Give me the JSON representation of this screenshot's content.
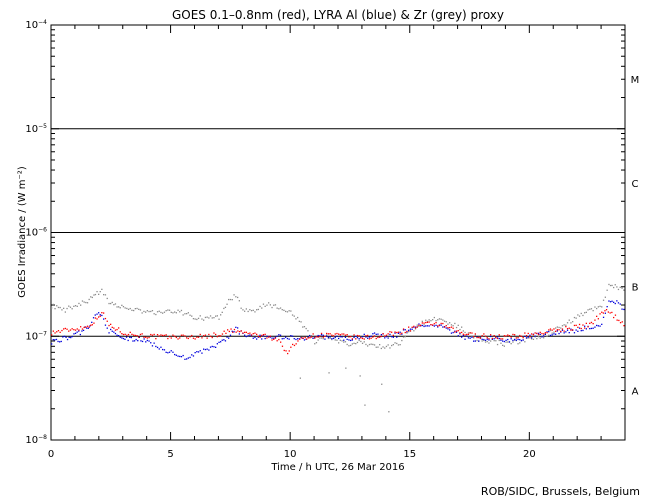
{
  "chart_data": {
    "type": "scatter",
    "title": "GOES 0.1–0.8nm (red), LYRA Al (blue) & Zr (grey) proxy",
    "xlabel": "Time / h UTC, 26 Mar 2016",
    "ylabel": "GOES Irradiance / (W m⁻²)",
    "xlim": [
      0,
      24
    ],
    "ylim": [
      1e-08,
      0.0001
    ],
    "yscale": "log",
    "x_ticks": [
      {
        "value": 0,
        "label": "0"
      },
      {
        "value": 5,
        "label": "5"
      },
      {
        "value": 10,
        "label": "10"
      },
      {
        "value": 15,
        "label": "15"
      },
      {
        "value": 20,
        "label": "20"
      }
    ],
    "y_ticks": [
      {
        "value": 1e-08,
        "base": "10",
        "exp": "−8"
      },
      {
        "value": 1e-07,
        "base": "10",
        "exp": "−7"
      },
      {
        "value": 1e-06,
        "base": "10",
        "exp": "−6"
      },
      {
        "value": 1e-05,
        "base": "10",
        "exp": "−5"
      },
      {
        "value": 0.0001,
        "base": "10",
        "exp": "−4"
      }
    ],
    "threshold_lines": [
      1e-07,
      1e-06,
      1e-05
    ],
    "flare_classes": [
      {
        "label": "A",
        "value": 3e-08
      },
      {
        "label": "B",
        "value": 3e-07
      },
      {
        "label": "C",
        "value": 3e-06
      },
      {
        "label": "M",
        "value": 3e-05
      }
    ],
    "series": [
      {
        "color": "#ff0000",
        "x": [
          0,
          0.5,
          1,
          1.5,
          1.9,
          2.1,
          2.4,
          3,
          3.5,
          4,
          4.5,
          5,
          5.5,
          6,
          6.5,
          7,
          7.5,
          8,
          8.5,
          9,
          9.5,
          9.8,
          10,
          10.3,
          10.6,
          11,
          11.5,
          12,
          12.5,
          13,
          13.5,
          14,
          14.5,
          15,
          15.5,
          16,
          16.5,
          17,
          17.5,
          18,
          18.5,
          19,
          19.5,
          20,
          20.5,
          21,
          21.5,
          22,
          22.5,
          23,
          23.2,
          23.5,
          24
        ],
        "y": [
          1.1e-07,
          1.15e-07,
          1.2e-07,
          1.25e-07,
          1.5e-07,
          1.75e-07,
          1.3e-07,
          1.1e-07,
          1.05e-07,
          1.02e-07,
          1e-07,
          1e-07,
          1e-07,
          1e-07,
          1.02e-07,
          1.05e-07,
          1.15e-07,
          1.1e-07,
          1.05e-07,
          1e-07,
          9.5e-08,
          7e-08,
          7.8e-08,
          9e-08,
          1e-07,
          1.02e-07,
          1.05e-07,
          1.03e-07,
          1e-07,
          9.8e-08,
          1e-07,
          1.05e-07,
          1.1e-07,
          1.2e-07,
          1.3e-07,
          1.35e-07,
          1.25e-07,
          1.1e-07,
          1.05e-07,
          1.02e-07,
          1e-07,
          1e-07,
          1.02e-07,
          1.05e-07,
          1.1e-07,
          1.15e-07,
          1.2e-07,
          1.25e-07,
          1.3e-07,
          1.7e-07,
          1.9e-07,
          1.6e-07,
          1.3e-07
        ]
      },
      {
        "color": "#0000dd",
        "x": [
          0,
          0.4,
          0.8,
          1.2,
          1.6,
          1.9,
          2.1,
          2.4,
          2.8,
          3.2,
          3.6,
          4,
          4.5,
          5,
          5.5,
          6,
          6.5,
          7,
          7.4,
          7.7,
          8,
          8.5,
          9,
          9.5,
          10,
          10.5,
          11,
          11.5,
          12,
          12.5,
          13,
          13.5,
          14,
          14.5,
          15,
          15.5,
          16,
          16.5,
          17,
          17.5,
          18,
          18.5,
          19,
          19.5,
          20,
          20.5,
          21,
          21.5,
          22,
          22.5,
          23,
          23.3,
          23.7,
          24
        ],
        "y": [
          9e-08,
          9.5e-08,
          1e-07,
          1.1e-07,
          1.3e-07,
          1.7e-07,
          1.6e-07,
          1.15e-07,
          1e-07,
          9.5e-08,
          9.5e-08,
          9e-08,
          8e-08,
          7e-08,
          6.3e-08,
          6.8e-08,
          7.5e-08,
          8.5e-08,
          1e-07,
          1.2e-07,
          1.05e-07,
          1e-07,
          1e-07,
          1e-07,
          9.8e-08,
          9.8e-08,
          1e-07,
          1e-07,
          9.8e-08,
          9.5e-08,
          1e-07,
          1.05e-07,
          1e-07,
          1.05e-07,
          1.2e-07,
          1.3e-07,
          1.3e-07,
          1.2e-07,
          1.05e-07,
          9.5e-08,
          9.5e-08,
          1e-07,
          9e-08,
          9.5e-08,
          1e-07,
          1.05e-07,
          1.1e-07,
          1.15e-07,
          1.15e-07,
          1.25e-07,
          1.3e-07,
          2.3e-07,
          2.1e-07,
          1.8e-07
        ]
      },
      {
        "color": "#8c8c8c",
        "x": [
          0,
          0.5,
          1,
          1.5,
          1.9,
          2.1,
          2.4,
          3,
          3.5,
          4,
          4.5,
          5,
          5.5,
          6,
          6.5,
          7,
          7.4,
          7.7,
          8,
          8.5,
          9,
          9.5,
          10,
          10.5,
          11,
          11.5,
          12,
          12.5,
          13,
          13.5,
          14,
          14.5,
          15,
          15.5,
          16,
          16.5,
          17,
          17.5,
          18,
          18.5,
          19,
          19.5,
          20,
          20.5,
          21,
          21.5,
          22,
          22.5,
          23,
          23.3,
          23.7,
          24
        ],
        "y": [
          2e-07,
          1.8e-07,
          2e-07,
          2.2e-07,
          2.6e-07,
          2.8e-07,
          2.2e-07,
          1.9e-07,
          1.8e-07,
          1.75e-07,
          1.7e-07,
          1.8e-07,
          1.7e-07,
          1.55e-07,
          1.5e-07,
          1.55e-07,
          2.2e-07,
          2.5e-07,
          1.8e-07,
          1.75e-07,
          2.1e-07,
          1.9e-07,
          1.7e-07,
          1.3e-07,
          9e-08,
          1e-07,
          9e-08,
          8.5e-08,
          9e-08,
          8e-08,
          8e-08,
          8.5e-08,
          1.15e-07,
          1.35e-07,
          1.5e-07,
          1.4e-07,
          1.25e-07,
          1.05e-07,
          9e-08,
          9e-08,
          8.5e-08,
          9e-08,
          9.5e-08,
          1e-07,
          1.15e-07,
          1.3e-07,
          1.6e-07,
          1.8e-07,
          2e-07,
          3.2e-07,
          3e-07,
          2.8e-07
        ]
      }
    ],
    "scattered_points": {
      "color": "#8c8c8c",
      "x": [
        10.4,
        11.6,
        12.3,
        13.1,
        13.8,
        14.1,
        12.9
      ],
      "y": [
        4e-08,
        4.5e-08,
        5e-08,
        2.2e-08,
        3.5e-08,
        1.9e-08,
        4.2e-08
      ]
    }
  },
  "footer": {
    "credit": "ROB/SIDC, Brussels, Belgium"
  }
}
